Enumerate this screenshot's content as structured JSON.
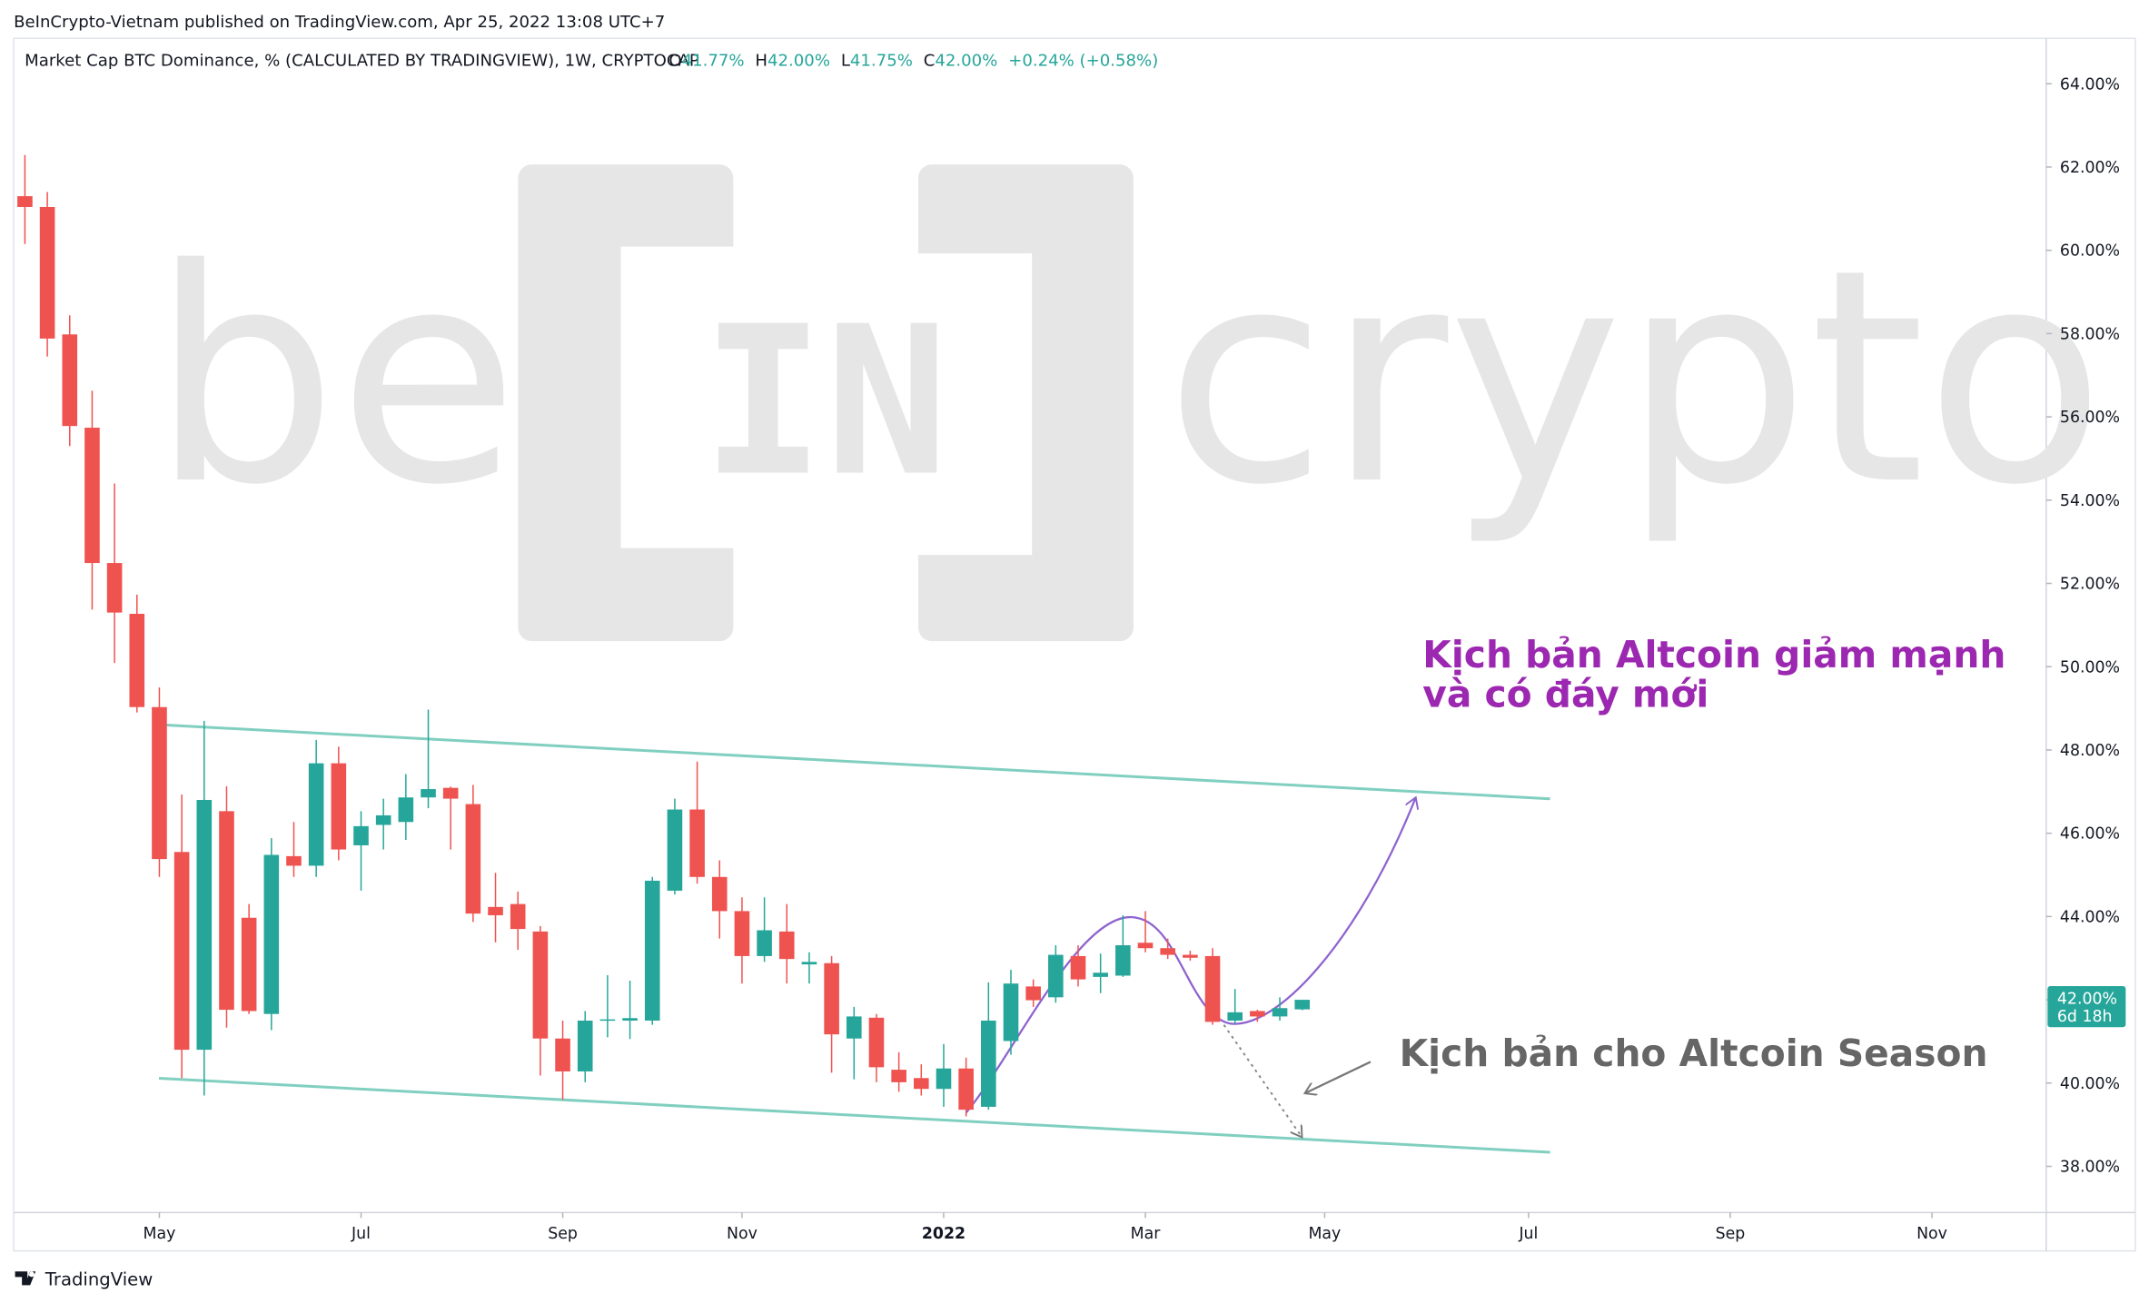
{
  "header": "BeInCrypto-Vietnam published on TradingView.com, Apr 25, 2022 13:08 UTC+7",
  "legend": {
    "symbol": "Market Cap BTC Dominance, % (CALCULATED BY TRADINGVIEW), 1W, CRYPTOCAP",
    "o_label": "O",
    "o": "41.77%",
    "h_label": "H",
    "h": "42.00%",
    "l_label": "L",
    "l": "41.75%",
    "c_label": "C",
    "c": "42.00%",
    "change": "+0.24% (+0.58%)"
  },
  "watermark": {
    "left": "be",
    "middle": "IN",
    "right": "crypto"
  },
  "annotations": {
    "bearish_line1": "Kịch bản Altcoin giảm mạnh",
    "bearish_line2": "và có đáy mới",
    "altseason": "Kịch bản cho Altcoin Season"
  },
  "footer": "TradingView",
  "chart_data": {
    "type": "candlestick",
    "open": [
      61.3,
      61.04,
      57.98,
      55.74,
      52.49,
      51.27,
      49.03,
      45.55,
      40.8,
      46.53,
      43.97,
      41.66,
      45.45,
      45.22,
      47.68,
      45.71,
      46.2,
      46.27,
      46.86,
      47.09,
      46.7,
      44.23,
      44.3,
      43.64,
      41.07,
      40.28,
      41.5,
      41.5,
      41.5,
      44.62,
      46.57,
      44.95,
      44.13,
      43.05,
      43.64,
      42.85,
      42.88,
      41.07,
      41.57,
      40.32,
      40.12,
      39.86,
      40.35,
      39.43,
      41.01,
      42.32,
      42.06,
      43.05,
      42.55,
      42.58,
      43.37,
      43.24,
      43.08,
      43.05,
      41.5,
      41.73,
      41.6,
      41.77
    ],
    "high": [
      62.29,
      61.4,
      58.44,
      56.63,
      54.4,
      51.73,
      49.5,
      46.93,
      48.7,
      47.13,
      44.3,
      45.88,
      46.27,
      48.24,
      48.08,
      46.53,
      46.83,
      47.42,
      48.97,
      47.12,
      47.16,
      45.05,
      44.6,
      43.77,
      41.5,
      41.73,
      42.59,
      42.46,
      44.95,
      46.83,
      47.72,
      45.35,
      44.46,
      44.46,
      44.3,
      43.14,
      43.05,
      41.83,
      41.66,
      40.74,
      40.45,
      40.94,
      40.61,
      42.42,
      42.72,
      42.49,
      43.31,
      43.31,
      43.11,
      44.03,
      44.13,
      43.47,
      43.18,
      43.24,
      42.26,
      41.76,
      42.06,
      42.0
    ],
    "low": [
      60.15,
      57.45,
      55.3,
      51.37,
      50.09,
      48.9,
      44.95,
      40.12,
      39.7,
      41.33,
      41.66,
      41.27,
      44.95,
      44.95,
      45.35,
      44.62,
      45.61,
      45.84,
      46.6,
      45.61,
      43.87,
      43.38,
      43.2,
      40.18,
      39.6,
      40.02,
      41.1,
      41.06,
      41.4,
      44.53,
      44.79,
      43.47,
      42.39,
      42.91,
      42.39,
      42.39,
      40.25,
      40.09,
      40.02,
      39.79,
      39.7,
      39.43,
      39.2,
      39.36,
      40.68,
      41.83,
      41.93,
      42.32,
      42.16,
      42.55,
      43.14,
      42.98,
      42.94,
      41.4,
      41.43,
      41.47,
      41.5,
      41.75
    ],
    "close": [
      61.04,
      57.88,
      55.78,
      52.49,
      51.3,
      49.03,
      45.38,
      40.8,
      46.8,
      41.76,
      41.73,
      45.48,
      45.22,
      47.68,
      45.61,
      46.17,
      46.43,
      46.86,
      47.06,
      46.83,
      44.07,
      44.03,
      43.7,
      41.07,
      40.28,
      41.5,
      41.53,
      41.56,
      44.86,
      46.57,
      44.95,
      44.13,
      43.05,
      43.67,
      42.98,
      42.91,
      41.17,
      41.6,
      40.38,
      40.02,
      39.86,
      40.35,
      39.36,
      41.5,
      42.39,
      41.99,
      43.08,
      42.49,
      42.65,
      43.31,
      43.24,
      43.08,
      43.01,
      41.47,
      41.7,
      41.6,
      41.8,
      42.0
    ],
    "up_color": "#26a69a",
    "down_color": "#ef5350",
    "xlim": [
      -0.5,
      90.2
    ],
    "xticks": [
      {
        "value": 6,
        "label": "May"
      },
      {
        "value": 15,
        "label": "Jul"
      },
      {
        "value": 24,
        "label": "Sep"
      },
      {
        "value": 32,
        "label": "Nov"
      },
      {
        "value": 41,
        "label": "2022"
      },
      {
        "value": 50,
        "label": "Mar"
      },
      {
        "value": 58,
        "label": "May"
      },
      {
        "value": 67.1,
        "label": "Jul"
      },
      {
        "value": 76.1,
        "label": "Sep"
      },
      {
        "value": 85.1,
        "label": "Nov"
      }
    ],
    "ylim": [
      36.89,
      65.09
    ],
    "yticks": [
      {
        "value": 38,
        "label": "38.00%"
      },
      {
        "value": 40,
        "label": "40.00%"
      },
      {
        "value": 42,
        "label": "42.00%"
      },
      {
        "value": 44,
        "label": "44.00%"
      },
      {
        "value": 46,
        "label": "46.00%"
      },
      {
        "value": 48,
        "label": "48.00%"
      },
      {
        "value": 50,
        "label": "50.00%"
      },
      {
        "value": 52,
        "label": "52.00%"
      },
      {
        "value": 54,
        "label": "54.00%"
      },
      {
        "value": 56,
        "label": "56.00%"
      },
      {
        "value": 58,
        "label": "58.00%"
      },
      {
        "value": 60,
        "label": "60.00%"
      },
      {
        "value": 62,
        "label": "62.00%"
      },
      {
        "value": 64,
        "label": "64.00%"
      }
    ],
    "last_price": {
      "value": 42,
      "label": "42.00%",
      "countdown": "6d 18h"
    },
    "grid": false
  }
}
